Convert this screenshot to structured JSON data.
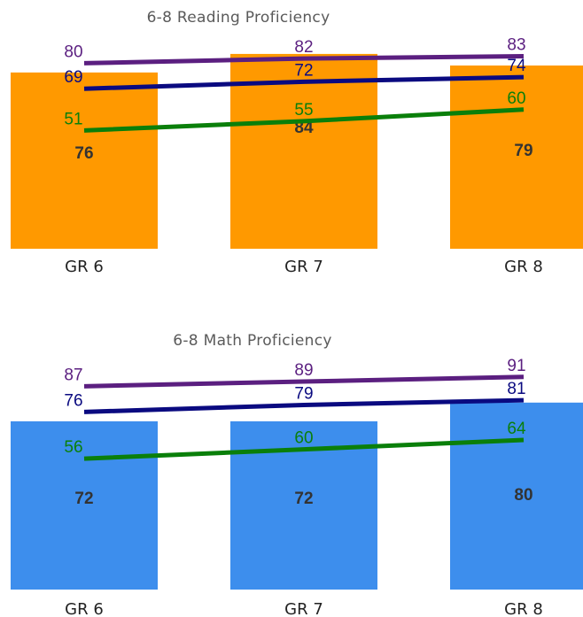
{
  "chart_data": [
    {
      "type": "bar",
      "title": "6-8 Reading Proficiency",
      "categories": [
        "GR 6",
        "GR 7",
        "GR 8"
      ],
      "ylim": [
        0,
        100
      ],
      "grid": false,
      "bar_series": {
        "values": [
          76,
          84,
          79
        ],
        "color": "#ff9900"
      },
      "line_series": [
        {
          "values": [
            80,
            82,
            83
          ],
          "color": "#5b1f80"
        },
        {
          "values": [
            69,
            72,
            74
          ],
          "color": "#0a0a80"
        },
        {
          "values": [
            51,
            55,
            60
          ],
          "color": "#0a7f0a"
        }
      ]
    },
    {
      "type": "bar",
      "title": "6-8 Math Proficiency",
      "categories": [
        "GR 6",
        "GR 7",
        "GR 8"
      ],
      "ylim": [
        0,
        100
      ],
      "grid": false,
      "bar_series": {
        "values": [
          72,
          72,
          80
        ],
        "color": "#3d8eed"
      },
      "line_series": [
        {
          "values": [
            87,
            89,
            91
          ],
          "color": "#5b1f80"
        },
        {
          "values": [
            76,
            79,
            81
          ],
          "color": "#0a0a80"
        },
        {
          "values": [
            56,
            60,
            64
          ],
          "color": "#0a7f0a"
        }
      ]
    }
  ]
}
